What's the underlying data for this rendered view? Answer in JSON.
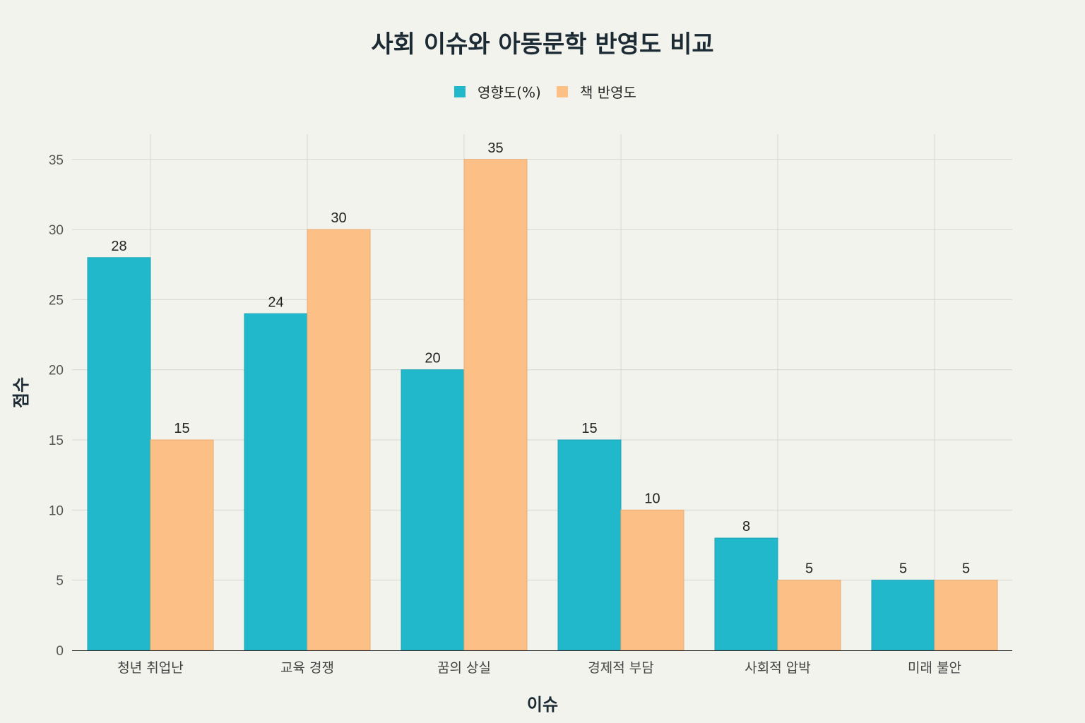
{
  "chart_data": {
    "type": "bar",
    "title": "사회 이슈와 아동문학 반영도 비교",
    "xlabel": "이슈",
    "ylabel": "점수",
    "categories": [
      "청년 취업난",
      "교육 경쟁",
      "꿈의 상실",
      "경제적 부담",
      "사회적 압박",
      "미래 불안"
    ],
    "series": [
      {
        "name": "영향도(%)",
        "values": [
          28,
          24,
          20,
          15,
          8,
          5
        ],
        "color": "#21b8cc"
      },
      {
        "name": "책 반영도",
        "values": [
          15,
          30,
          35,
          10,
          5,
          5
        ],
        "color": "#fcbf86"
      }
    ],
    "ylim": [
      0,
      36.8
    ],
    "yticks": [
      0,
      5,
      10,
      15,
      20,
      25,
      30,
      35
    ],
    "grid": true,
    "legend_position": "top-center"
  }
}
